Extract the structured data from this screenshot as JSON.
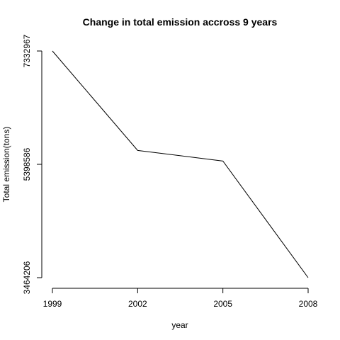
{
  "chart_data": {
    "type": "line",
    "title": "Change in total emission accross 9 years",
    "xlabel": "year",
    "ylabel": "Total emission(tons)",
    "x": [
      1999,
      2002,
      2005,
      2008
    ],
    "x_tick_labels": [
      "1999",
      "2002",
      "2005",
      "2008"
    ],
    "series": [
      {
        "values": [
          7332967,
          5635780,
          5454703,
          3464206
        ]
      }
    ],
    "y_ticks": [
      3464206,
      5398586,
      7332967
    ],
    "y_tick_labels": [
      "3464206",
      "5398586",
      "7332967"
    ],
    "xlim": [
      1999,
      2008
    ],
    "ylim": [
      3464206,
      7332967
    ],
    "grid": false,
    "line_color": "#000000"
  }
}
